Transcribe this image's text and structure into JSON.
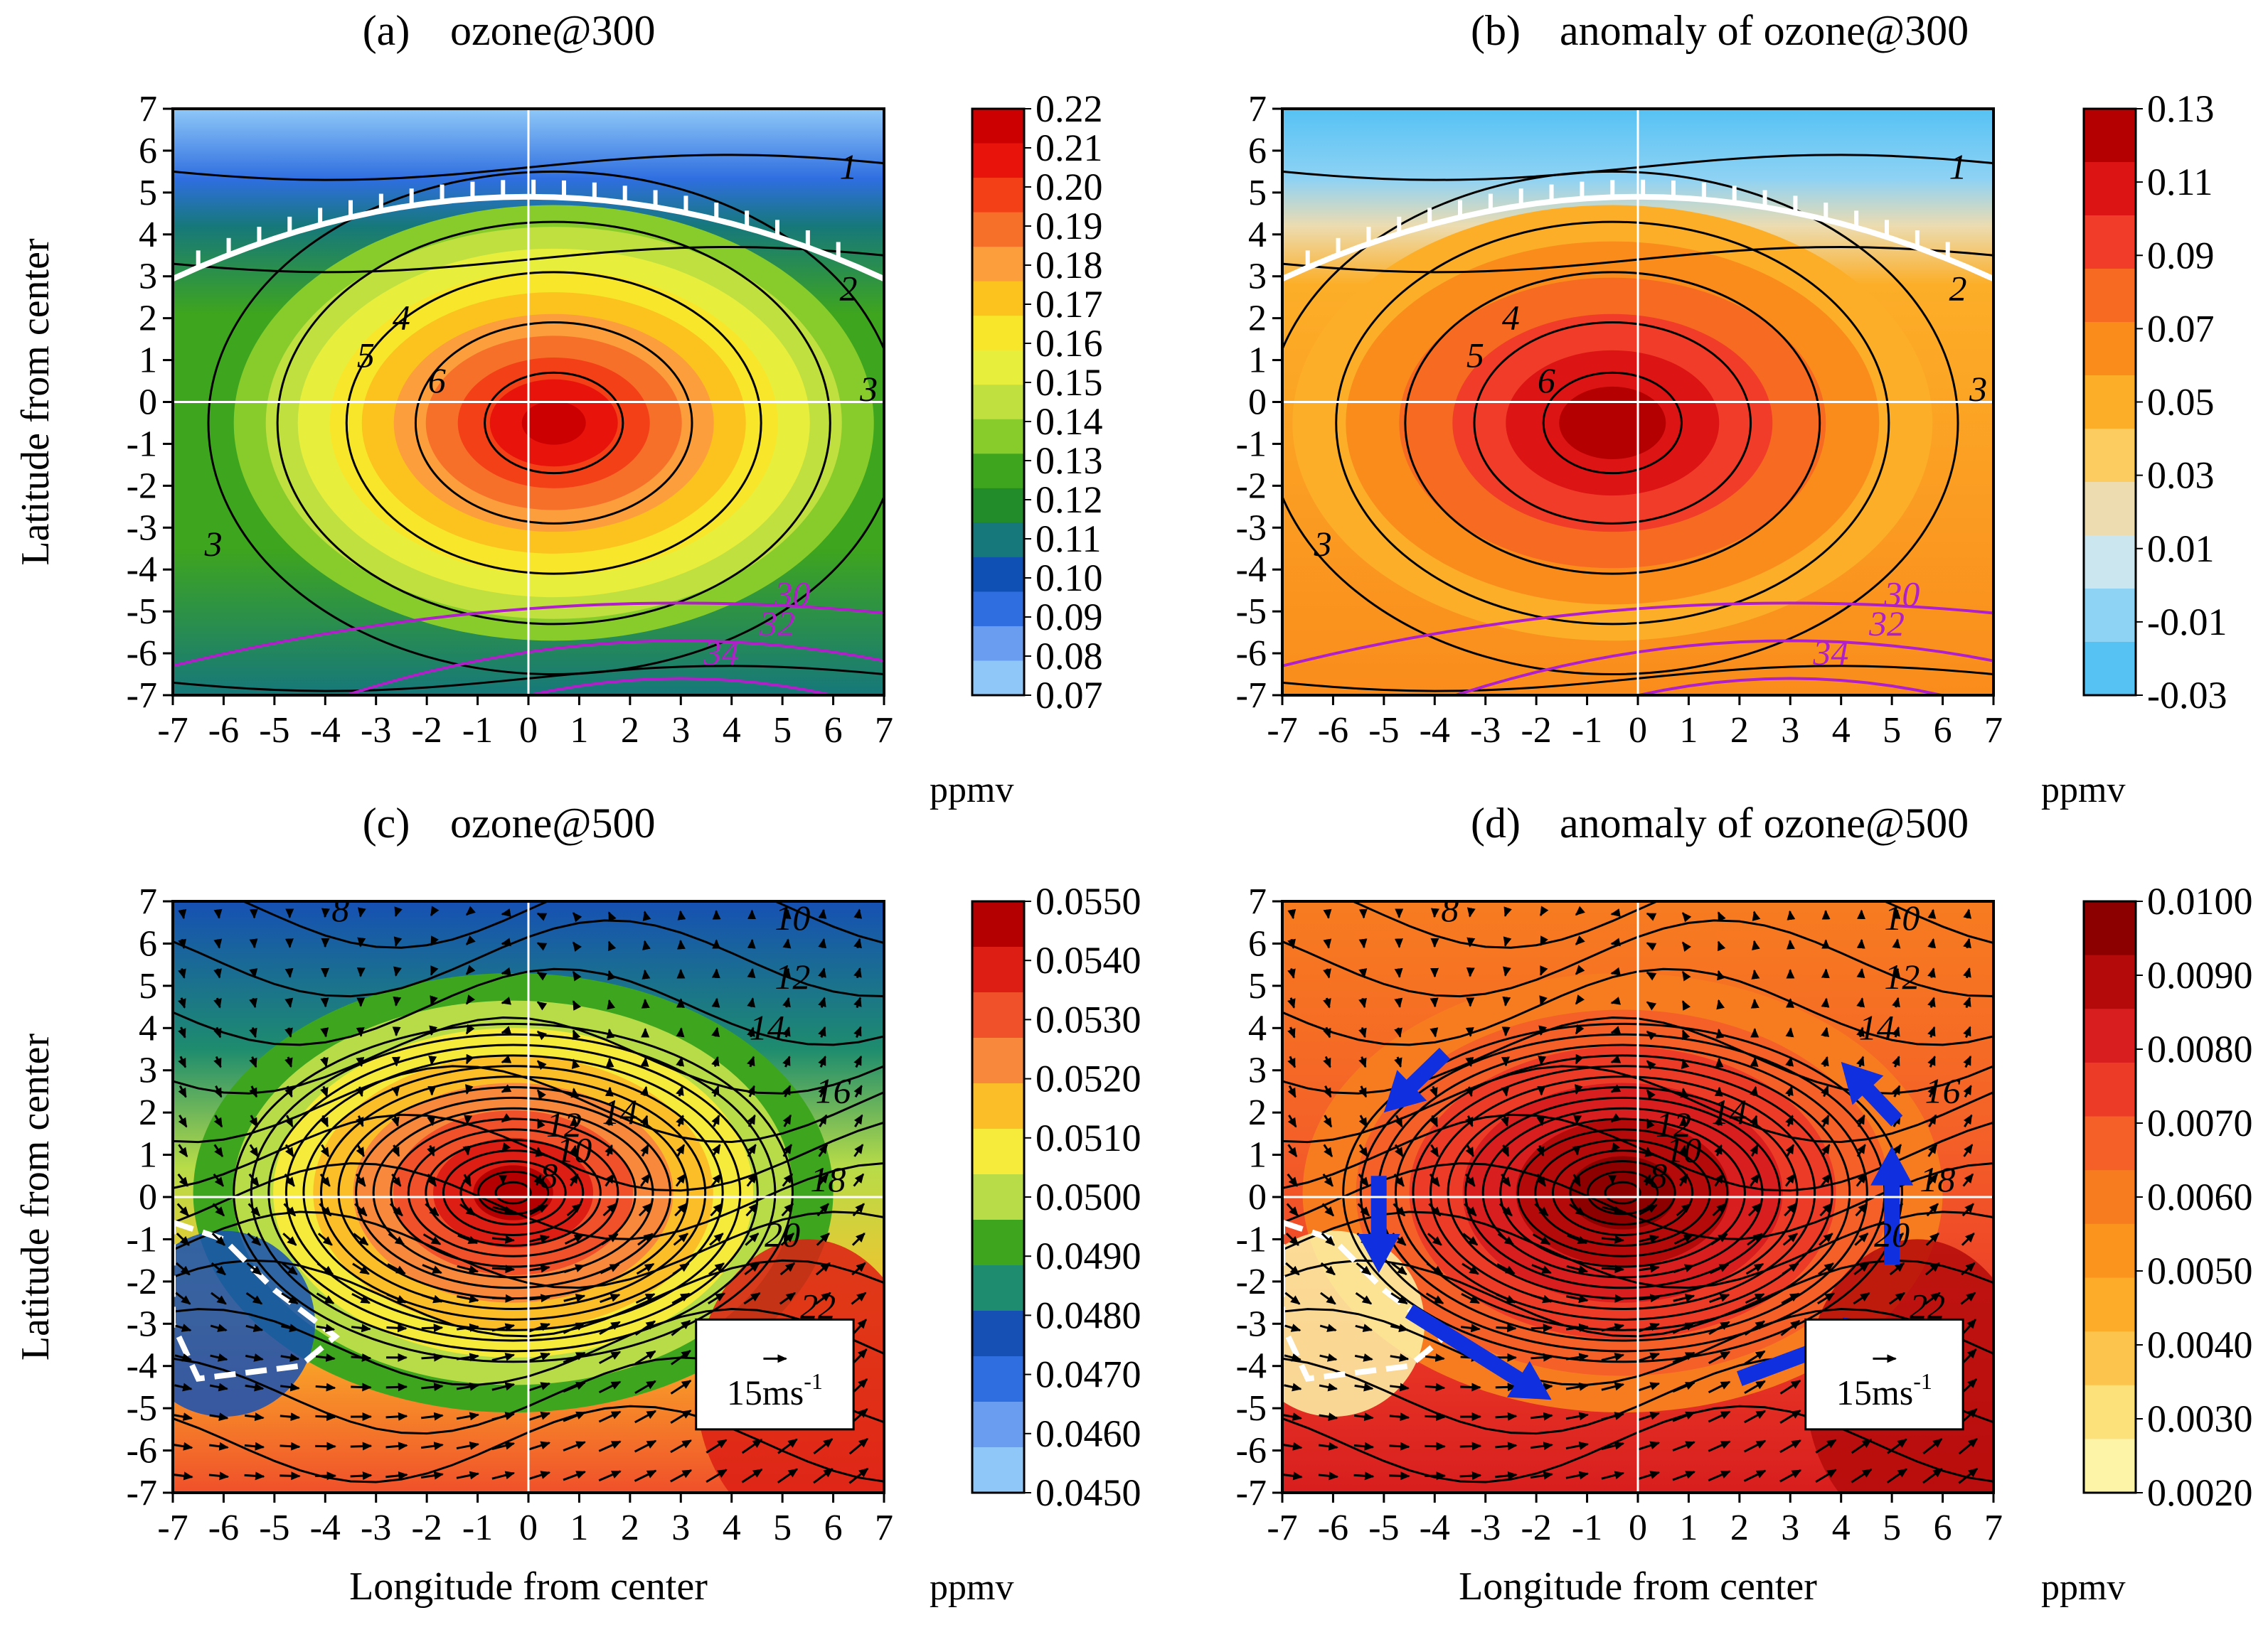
{
  "figure": {
    "xlabel": "Longitude from center",
    "ylabel": "Latitude from center",
    "unit": "ppmv",
    "reference_vector": {
      "value": "15",
      "unit": "ms",
      "exp": "-1"
    }
  },
  "chart_data": [
    {
      "id": "a",
      "type": "heatmap",
      "title_letter": "(a)",
      "title": "ozone@300",
      "xlim": [
        -7,
        7
      ],
      "ylim": [
        -7,
        7
      ],
      "xticks": [
        "-7",
        "-6",
        "-5",
        "-4",
        "-3",
        "-2",
        "-1",
        "0",
        "1",
        "2",
        "3",
        "4",
        "5",
        "6",
        "7"
      ],
      "yticks": [
        "7",
        "6",
        "5",
        "4",
        "3",
        "2",
        "1",
        "0",
        "-1",
        "-2",
        "-3",
        "-4",
        "-5",
        "-6",
        "-7"
      ],
      "colorbar_ticks": [
        "0.22",
        "0.21",
        "0.20",
        "0.19",
        "0.18",
        "0.17",
        "0.16",
        "0.15",
        "0.14",
        "0.13",
        "0.12",
        "0.11",
        "0.10",
        "0.09",
        "0.08",
        "0.07"
      ],
      "colorbar_colors": [
        "#cc0000",
        "#e8140c",
        "#f44016",
        "#f7702a",
        "#fc9e3c",
        "#fcc21e",
        "#f8e62a",
        "#e8ee3c",
        "#c0e040",
        "#88cc2c",
        "#3ea51e",
        "#238c2a",
        "#16787a",
        "#0e50b4",
        "#2f6ee0",
        "#6a9cf0",
        "#8fc8f8"
      ],
      "center": [
        0.5,
        -0.5
      ],
      "contour_labels": [
        "1",
        "2",
        "3",
        "3",
        "4",
        "5",
        "6"
      ],
      "magenta_labels": [
        "30",
        "32",
        "34"
      ],
      "vectors": false
    },
    {
      "id": "b",
      "type": "heatmap",
      "title_letter": "(b)",
      "title": "anomaly of ozone@300",
      "xlim": [
        -7,
        7
      ],
      "ylim": [
        -7,
        7
      ],
      "xticks": [
        "-7",
        "-6",
        "-5",
        "-4",
        "-3",
        "-2",
        "-1",
        "0",
        "1",
        "2",
        "3",
        "4",
        "5",
        "6",
        "7"
      ],
      "yticks": [
        "7",
        "6",
        "5",
        "4",
        "3",
        "2",
        "1",
        "0",
        "-1",
        "-2",
        "-3",
        "-4",
        "-5",
        "-6",
        "-7"
      ],
      "colorbar_ticks": [
        "0.13",
        "0.11",
        "0.09",
        "0.07",
        "0.05",
        "0.03",
        "0.01",
        "-0.01",
        "-0.03"
      ],
      "colorbar_colors": [
        "#b40000",
        "#dc1414",
        "#f03c28",
        "#f66a22",
        "#fa8c1c",
        "#fcae28",
        "#fccc60",
        "#ecdcb0",
        "#cce6f0",
        "#8ed2f4",
        "#56c2f4"
      ],
      "center": [
        -0.5,
        -0.5
      ],
      "contour_labels": [
        "1",
        "2",
        "3",
        "3",
        "4",
        "5",
        "6"
      ],
      "magenta_labels": [
        "30",
        "32",
        "34"
      ],
      "vectors": false
    },
    {
      "id": "c",
      "type": "heatmap",
      "title_letter": "(c)",
      "title": "ozone@500",
      "xlim": [
        -7,
        7
      ],
      "ylim": [
        -7,
        7
      ],
      "xticks": [
        "-7",
        "-6",
        "-5",
        "-4",
        "-3",
        "-2",
        "-1",
        "0",
        "1",
        "2",
        "3",
        "4",
        "5",
        "6",
        "7"
      ],
      "yticks": [
        "7",
        "6",
        "5",
        "4",
        "3",
        "2",
        "1",
        "0",
        "-1",
        "-2",
        "-3",
        "-4",
        "-5",
        "-6",
        "-7"
      ],
      "colorbar_ticks": [
        "0.0550",
        "0.0540",
        "0.0530",
        "0.0520",
        "0.0510",
        "0.0500",
        "0.0490",
        "0.0480",
        "0.0470",
        "0.0460",
        "0.0450"
      ],
      "colorbar_colors": [
        "#b40000",
        "#dc1e14",
        "#f0502a",
        "#f7883c",
        "#fcbe28",
        "#f6ea3a",
        "#b8dc48",
        "#3ea51e",
        "#1e8c6e",
        "#1650b4",
        "#2f6ee0",
        "#6a9cf0",
        "#8fc8f8"
      ],
      "center": [
        -0.3,
        0.1
      ],
      "contour_labels": [
        "8",
        "10",
        "12",
        "14",
        "16",
        "18",
        "20",
        "22",
        "14",
        "12",
        "10",
        "8"
      ],
      "vectors": true
    },
    {
      "id": "d",
      "type": "heatmap",
      "title_letter": "(d)",
      "title": "anomaly of ozone@500",
      "xlim": [
        -7,
        7
      ],
      "ylim": [
        -7,
        7
      ],
      "xticks": [
        "-7",
        "-6",
        "-5",
        "-4",
        "-3",
        "-2",
        "-1",
        "0",
        "1",
        "2",
        "3",
        "4",
        "5",
        "6",
        "7"
      ],
      "yticks": [
        "7",
        "6",
        "5",
        "4",
        "3",
        "2",
        "1",
        "0",
        "-1",
        "-2",
        "-3",
        "-4",
        "-5",
        "-6",
        "-7"
      ],
      "colorbar_ticks": [
        "0.0100",
        "0.0090",
        "0.0080",
        "0.0070",
        "0.0060",
        "0.0050",
        "0.0040",
        "0.0030",
        "0.0020"
      ],
      "colorbar_colors": [
        "#8c0000",
        "#b40a0a",
        "#d81e1e",
        "#ec3c28",
        "#f46028",
        "#f77c20",
        "#fa941c",
        "#fcac28",
        "#fcc44c",
        "#fce07a",
        "#fdf4a8"
      ],
      "center": [
        -0.3,
        0.1
      ],
      "contour_labels": [
        "8",
        "10",
        "12",
        "14",
        "16",
        "18",
        "20",
        "22",
        "14",
        "12",
        "10",
        "8"
      ],
      "vectors": true,
      "blue_arrows": true
    }
  ]
}
